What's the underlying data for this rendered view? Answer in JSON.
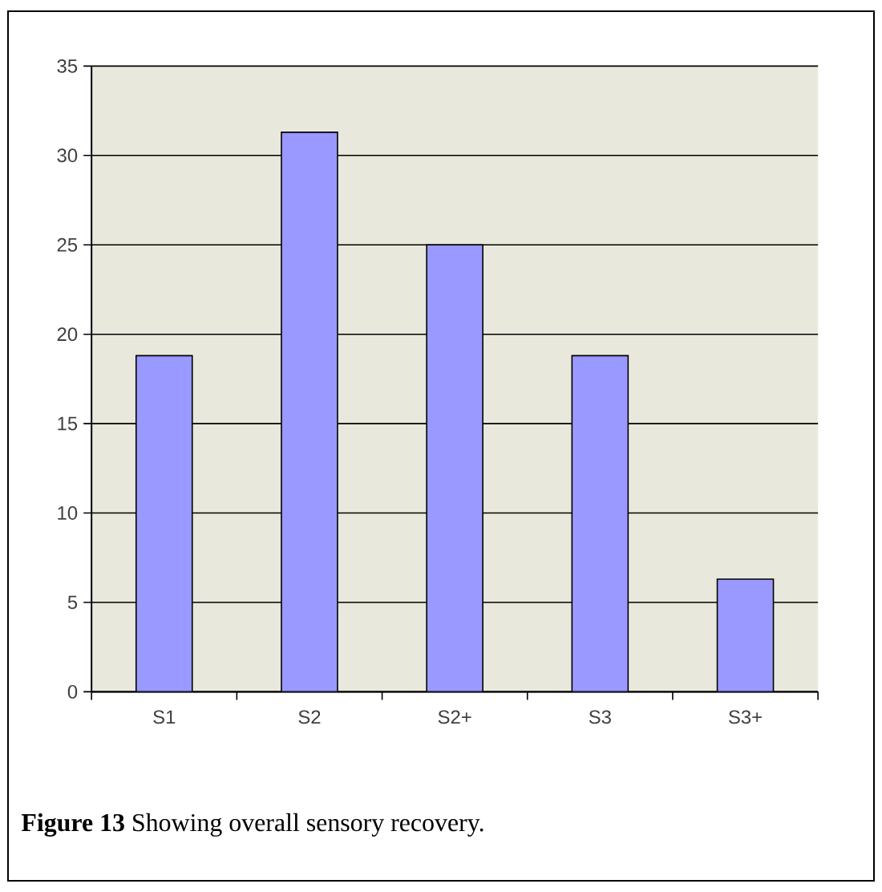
{
  "chart_data": {
    "type": "bar",
    "categories": [
      "S1",
      "S2",
      "S2+",
      "S3",
      "S3+"
    ],
    "values": [
      18.8,
      31.3,
      25,
      18.8,
      6.3
    ],
    "color": "#9999ff",
    "ylim": [
      0,
      35
    ],
    "yticks": [
      0,
      5,
      10,
      15,
      20,
      25,
      30,
      35
    ],
    "grid": "y",
    "annotations": [
      "**Figure 13** Showing overall sensory recovery."
    ]
  }
}
